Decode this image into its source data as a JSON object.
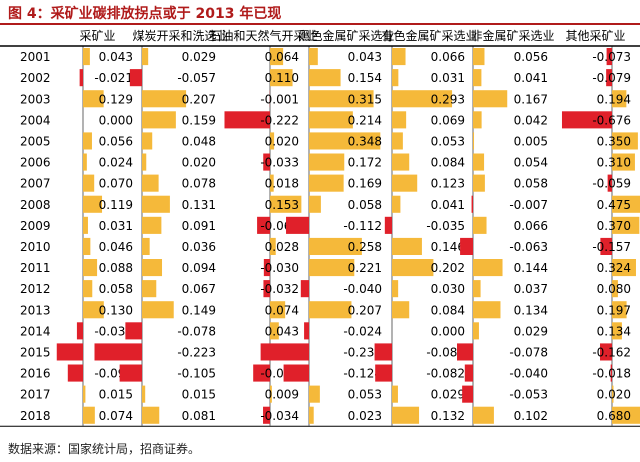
{
  "figure": {
    "title": "图 4：采矿业碳排放拐点或于 2013 年已现",
    "source": "数据来源：国家统计局，招商证券。"
  },
  "colors": {
    "positive": "#f5b93a",
    "negative": "#e0202a",
    "title": "#b01b1b"
  },
  "chart_data": {
    "type": "table",
    "title": "",
    "columns": [
      "采矿业",
      "煤炭开采和洗选业",
      "石油和天然气开采业",
      "黑色金属矿采选业",
      "有色金属矿采选业",
      "非金属矿采选业",
      "其他采矿业"
    ],
    "rows": [
      "2001",
      "2002",
      "2003",
      "2004",
      "2005",
      "2006",
      "2007",
      "2008",
      "2009",
      "2010",
      "2011",
      "2012",
      "2013",
      "2014",
      "2015",
      "2016",
      "2017",
      "2018"
    ],
    "values": [
      [
        0.043,
        0.029,
        0.064,
        0.043,
        0.066,
        0.056,
        -0.073
      ],
      [
        -0.021,
        -0.057,
        0.11,
        0.154,
        0.031,
        0.041,
        -0.079
      ],
      [
        0.129,
        0.207,
        -0.001,
        0.315,
        0.293,
        0.167,
        0.194
      ],
      [
        0.0,
        0.159,
        -0.222,
        0.214,
        0.069,
        0.042,
        -0.676
      ],
      [
        0.056,
        0.048,
        0.02,
        0.348,
        0.053,
        0.005,
        0.35
      ],
      [
        0.024,
        0.02,
        -0.033,
        0.172,
        0.084,
        0.054,
        0.31
      ],
      [
        0.07,
        0.078,
        0.018,
        0.169,
        0.123,
        0.058,
        -0.059
      ],
      [
        0.119,
        0.131,
        0.153,
        0.058,
        0.041,
        -0.007,
        0.475
      ],
      [
        0.031,
        0.091,
        -0.063,
        -0.112,
        -0.035,
        0.066,
        0.37
      ],
      [
        0.046,
        0.036,
        0.028,
        0.258,
        0.146,
        -0.063,
        -0.157
      ],
      [
        0.088,
        0.094,
        -0.03,
        0.221,
        0.202,
        0.144,
        0.324
      ],
      [
        0.058,
        0.067,
        -0.032,
        -0.04,
        0.03,
        0.037,
        0.08
      ],
      [
        0.13,
        0.149,
        0.074,
        0.207,
        0.084,
        0.134,
        0.197
      ],
      [
        -0.038,
        -0.078,
        0.043,
        -0.024,
        0.0,
        0.029,
        0.134
      ],
      [
        -0.164,
        -0.223,
        0.001,
        -0.236,
        -0.085,
        -0.078,
        -0.162
      ],
      [
        -0.095,
        -0.105,
        -0.082,
        -0.124,
        -0.082,
        -0.04,
        -0.018
      ],
      [
        0.015,
        0.015,
        0.009,
        0.053,
        0.029,
        -0.053,
        0.02
      ],
      [
        0.074,
        0.081,
        -0.034,
        0.023,
        0.132,
        0.102,
        0.68
      ]
    ],
    "labels": [
      [
        "0.043",
        "0.029",
        "0.064",
        "0.043",
        "0.066",
        "0.056",
        "-0.073"
      ],
      [
        "-0.021",
        "-0.057",
        "0.110",
        "0.154",
        "0.031",
        "0.041",
        "-0.079"
      ],
      [
        "0.129",
        "0.207",
        "-0.001",
        "0.315",
        "0.293",
        "0.167",
        "0.194"
      ],
      [
        "0.000",
        "0.159",
        "-0.222",
        "0.214",
        "0.069",
        "0.042",
        "-0.676"
      ],
      [
        "0.056",
        "0.048",
        "0.020",
        "0.348",
        "0.053",
        "0.005",
        "0.350"
      ],
      [
        "0.024",
        "0.020",
        "-0.033",
        "0.172",
        "0.084",
        "0.054",
        "0.310"
      ],
      [
        "0.070",
        "0.078",
        "0.018",
        "0.169",
        "0.123",
        "0.058",
        "-0.059"
      ],
      [
        "0.119",
        "0.131",
        "0.153",
        "0.058",
        "0.041",
        "-0.007",
        "0.475"
      ],
      [
        "0.031",
        "0.091",
        "-0.063",
        "-0.112",
        "-0.035",
        "0.066",
        "0.370"
      ],
      [
        "0.046",
        "0.036",
        "0.028",
        "0.258",
        "0.146",
        "-0.063",
        "-0.157"
      ],
      [
        "0.088",
        "0.094",
        "-0.030",
        "0.221",
        "0.202",
        "0.144",
        "0.324"
      ],
      [
        "0.058",
        "0.067",
        "-0.032",
        "-0.040",
        "0.030",
        "0.037",
        "0.080"
      ],
      [
        "0.130",
        "0.149",
        "0.074",
        "0.207",
        "0.084",
        "0.134",
        "0.197"
      ],
      [
        "-0.038",
        "-0.078",
        "0.043",
        "-0.024",
        "0.000",
        "0.029",
        "0.134"
      ],
      [
        "-0.164",
        "-0.223",
        "0.001",
        "-0.236",
        "-0.085",
        "-0.078",
        "-0.162"
      ],
      [
        "-0.095",
        "-0.105",
        "-0.082",
        "-0.124",
        "-0.082",
        "-0.040",
        "-0.018"
      ],
      [
        "0.015",
        "0.015",
        "0.009",
        "0.053",
        "0.029",
        "-0.053",
        "0.020"
      ],
      [
        "0.074",
        "0.081",
        "-0.034",
        "0.023",
        "0.132",
        "0.102",
        "0.680"
      ]
    ]
  }
}
